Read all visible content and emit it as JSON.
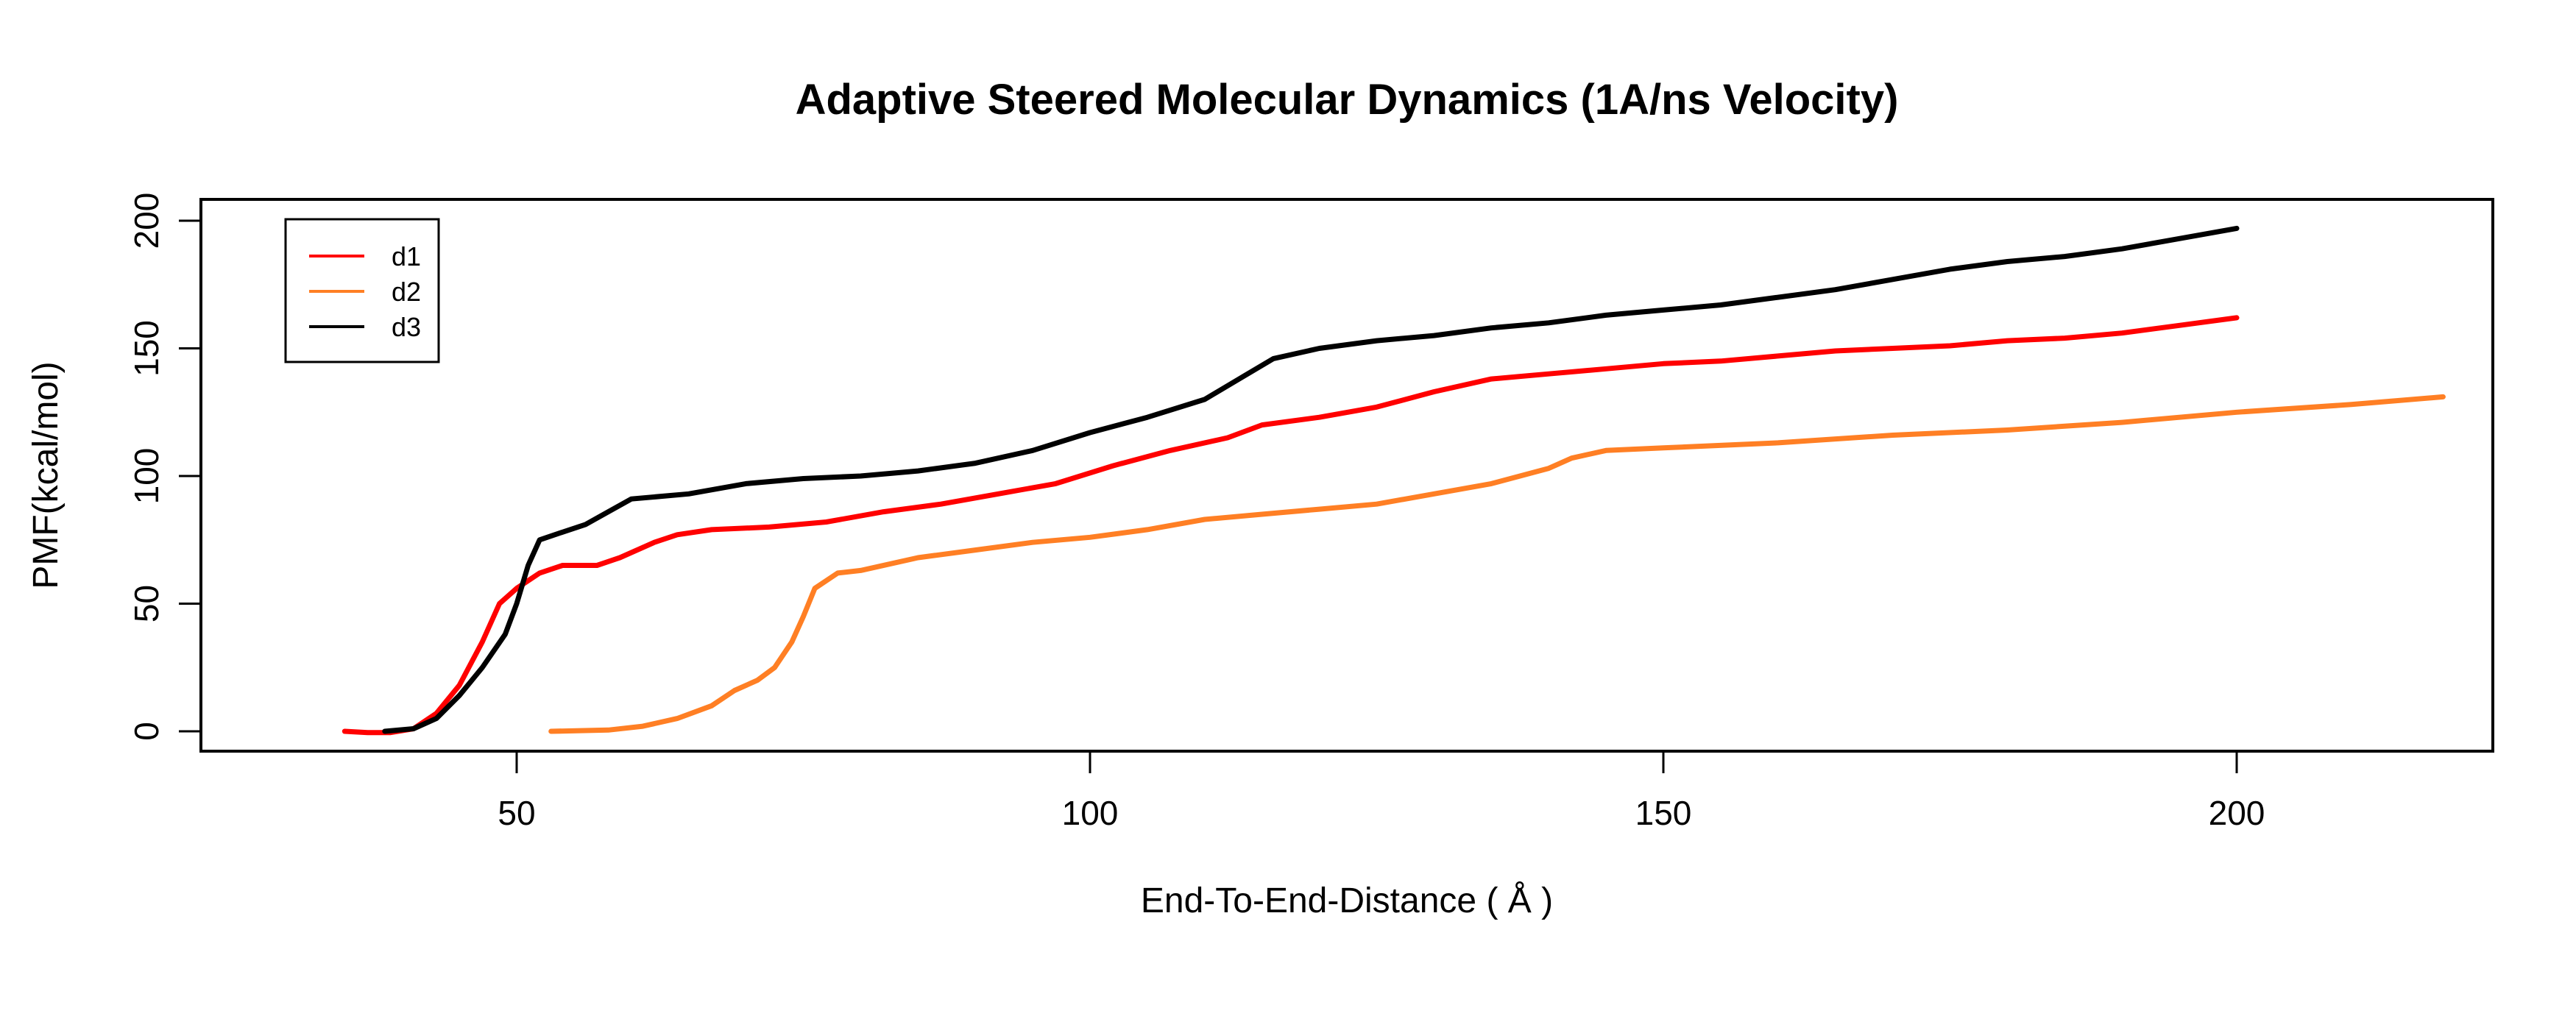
{
  "chart_data": {
    "type": "line",
    "title": "Adaptive Steered Molecular Dynamics (1A/ns Velocity)",
    "xlabel": "End-To-End-Distance ( Å )",
    "ylabel": "PMF(kcal/mol)",
    "xlim": [
      22.5,
      230
    ],
    "ylim": [
      -8,
      205
    ],
    "xticks": [
      50,
      100,
      150,
      200
    ],
    "yticks": [
      0,
      50,
      100,
      150,
      200
    ],
    "xtick_labels": [
      "50",
      "100",
      "150",
      "200"
    ],
    "ytick_labels": [
      "0",
      "50",
      "100",
      "150",
      "200"
    ],
    "grid": false,
    "legend": {
      "position": "top-left",
      "entries": [
        "d1",
        "d2",
        "d3"
      ]
    },
    "series": [
      {
        "name": "d1",
        "color": "#ff0000",
        "x": [
          35,
          37,
          39,
          41,
          43,
          45,
          47,
          48.5,
          50,
          52,
          54,
          57,
          59,
          62,
          64,
          67,
          72,
          77,
          82,
          87,
          92,
          97,
          102,
          107,
          112,
          115,
          120,
          125,
          130,
          135,
          140,
          145,
          150,
          155,
          160,
          165,
          170,
          175,
          180,
          185,
          190,
          195,
          200
        ],
        "y": [
          0,
          -0.5,
          -0.5,
          1,
          7,
          18,
          35,
          50,
          56,
          62,
          65,
          65,
          68,
          74,
          77,
          79,
          80,
          82,
          86,
          89,
          93,
          97,
          104,
          110,
          115,
          120,
          123,
          127,
          133,
          138,
          140,
          142,
          144,
          145,
          147,
          149,
          150,
          151,
          153,
          154,
          156,
          159,
          162
        ]
      },
      {
        "name": "d2",
        "color": "#ff7f24",
        "x": [
          53,
          58,
          61,
          64,
          67,
          69,
          71,
          72.5,
          74,
          75,
          76,
          78,
          80,
          85,
          90,
          95,
          100,
          105,
          110,
          115,
          120,
          125,
          130,
          135,
          140,
          142,
          145,
          150,
          160,
          170,
          180,
          190,
          200,
          210,
          218
        ],
        "y": [
          0,
          0.5,
          2,
          5,
          10,
          16,
          20,
          25,
          35,
          45,
          56,
          62,
          63,
          68,
          71,
          74,
          76,
          79,
          83,
          85,
          87,
          89,
          93,
          97,
          103,
          107,
          110,
          111,
          113,
          116,
          118,
          121,
          125,
          128,
          131
        ]
      },
      {
        "name": "d3",
        "color": "#000000",
        "x": [
          38.5,
          41,
          43,
          45,
          47,
          49,
          50,
          51,
          52,
          54,
          56,
          58,
          60,
          65,
          70,
          75,
          80,
          85,
          90,
          95,
          100,
          105,
          110,
          113,
          116,
          120,
          125,
          130,
          135,
          140,
          145,
          150,
          155,
          160,
          165,
          170,
          175,
          180,
          185,
          190,
          195,
          200
        ],
        "y": [
          0,
          1,
          5,
          14,
          25,
          38,
          50,
          65,
          75,
          78,
          81,
          86,
          91,
          93,
          97,
          99,
          100,
          102,
          105,
          110,
          117,
          123,
          130,
          138,
          146,
          150,
          153,
          155,
          158,
          160,
          163,
          165,
          167,
          170,
          173,
          177,
          181,
          184,
          186,
          189,
          193,
          197
        ]
      }
    ]
  }
}
